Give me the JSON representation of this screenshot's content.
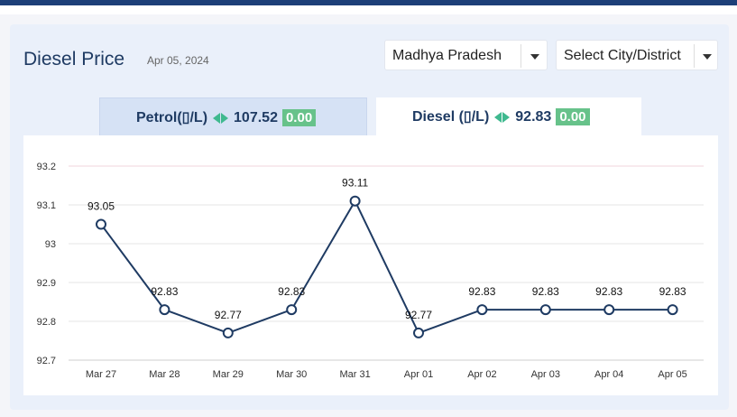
{
  "page": {
    "title": "Diesel Price",
    "date": "Apr 05, 2024"
  },
  "filters": {
    "state": {
      "selected": "Madhya Pradesh"
    },
    "city": {
      "selected": "Select City/District"
    }
  },
  "tabs": [
    {
      "fuel_label": "Petrol(▯/L)",
      "price": "107.52",
      "change": "0.00",
      "active": false
    },
    {
      "fuel_label": "Diesel (▯/L)",
      "price": "92.83",
      "change": "0.00",
      "active": true
    }
  ],
  "colors": {
    "line": "#1f3b63",
    "gridline": "#e6e6e6",
    "top_gridline": "#f0d6dc",
    "change_badge": "#67c28a",
    "change_arrows": "#3fb98f"
  },
  "chart_data": {
    "type": "line",
    "categories": [
      "Mar 27",
      "Mar 28",
      "Mar 29",
      "Mar 30",
      "Mar 31",
      "Apr 01",
      "Apr 02",
      "Apr 03",
      "Apr 04",
      "Apr 05"
    ],
    "series": [
      {
        "values": [
          93.05,
          92.83,
          92.77,
          92.83,
          93.11,
          92.77,
          92.83,
          92.83,
          92.83,
          92.83
        ]
      }
    ],
    "data_labels": [
      "93.05",
      "92.83",
      "92.77",
      "92.83",
      "93.11",
      "92.77",
      "92.83",
      "92.83",
      "92.83",
      "92.83"
    ],
    "y_ticks": [
      "92.7",
      "92.8",
      "92.9",
      "93",
      "93.1",
      "93.2"
    ],
    "ylim": [
      92.7,
      93.2
    ],
    "grid": true,
    "legend": "none"
  }
}
